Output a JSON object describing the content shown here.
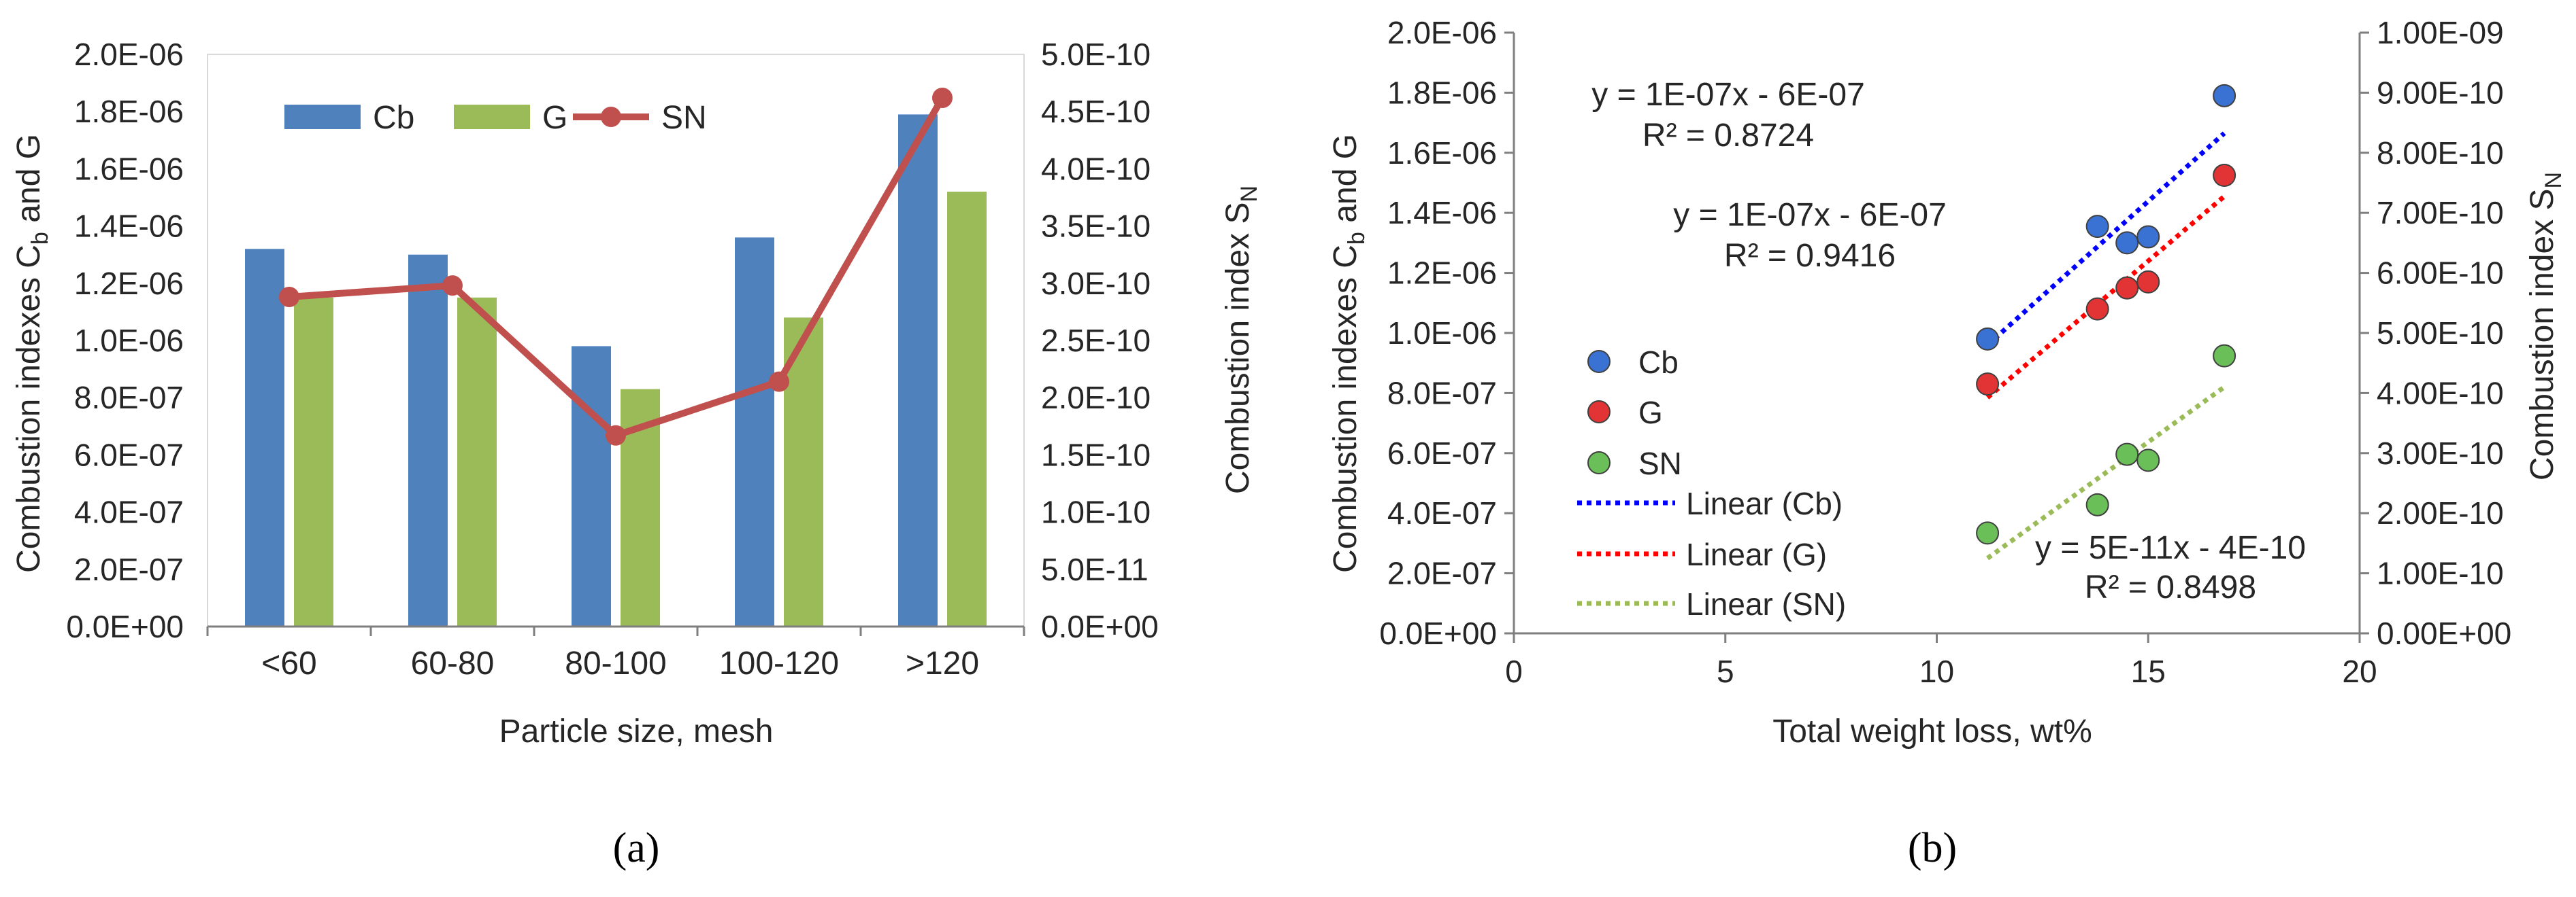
{
  "colors": {
    "cb": "#4f81bd",
    "g": "#9bbb59",
    "sn": "#c0504d",
    "cb_point": "#3a72d4",
    "g_point": "#e23434",
    "sn_point": "#6bbf59",
    "cb_trend": "#0000ff",
    "g_trend": "#ff0000",
    "sn_trend": "#9bbb59",
    "cb_eq": "#0000ff",
    "g_eq": "#ff0000",
    "sn_eq": "#00b050",
    "axis": "#7f7f7f"
  },
  "chart_data": [
    {
      "id": "a",
      "type": "bar",
      "panel_label": "(a)",
      "categories": [
        "<60",
        "60-80",
        "80-100",
        "100-120",
        ">120"
      ],
      "xlabel": "Particle size, mesh",
      "ylabel_main": "Combustion indexes C",
      "ylabel_sub": "b",
      "ylabel_tail": " and G",
      "y2label_main": "Combustion index S",
      "y2label_sub": "N",
      "ylim": [
        0,
        2e-06
      ],
      "yticks": [
        "0.0E+00",
        "2.0E-07",
        "4.0E-07",
        "6.0E-07",
        "8.0E-07",
        "1.0E-06",
        "1.2E-06",
        "1.4E-06",
        "1.6E-06",
        "1.8E-06",
        "2.0E-06"
      ],
      "y2lim": [
        0,
        5e-10
      ],
      "y2ticks": [
        "0.0E+00",
        "5.0E-11",
        "1.0E-10",
        "1.5E-10",
        "2.0E-10",
        "2.5E-10",
        "3.0E-10",
        "3.5E-10",
        "4.0E-10",
        "4.5E-10",
        "5.0E-10"
      ],
      "legend": [
        "Cb",
        "G",
        "SN"
      ],
      "legend_position": "top-left",
      "series": [
        {
          "name": "Cb",
          "kind": "bar",
          "axis": "left",
          "values": [
            1.32e-06,
            1.3e-06,
            9.8e-07,
            1.36e-06,
            1.79e-06
          ]
        },
        {
          "name": "G",
          "kind": "bar",
          "axis": "left",
          "values": [
            1.15e-06,
            1.15e-06,
            8.3e-07,
            1.08e-06,
            1.52e-06
          ]
        },
        {
          "name": "SN",
          "kind": "line",
          "axis": "right",
          "values": [
            2.88e-10,
            2.98e-10,
            1.67e-10,
            2.14e-10,
            4.62e-10
          ]
        }
      ]
    },
    {
      "id": "b",
      "type": "scatter",
      "panel_label": "(b)",
      "xlabel": "Total weight loss, wt%",
      "xlim": [
        0,
        20
      ],
      "xticks": [
        "0",
        "5",
        "10",
        "15",
        "20"
      ],
      "ylabel_main": "Combustion indexes C",
      "ylabel_sub": "b",
      "ylabel_tail": " and G",
      "y2label_main": "Combustion index S",
      "y2label_sub": "N",
      "ylim": [
        0,
        2e-06
      ],
      "yticks": [
        "0.0E+00",
        "2.0E-07",
        "4.0E-07",
        "6.0E-07",
        "8.0E-07",
        "1.0E-06",
        "1.2E-06",
        "1.4E-06",
        "1.6E-06",
        "1.8E-06",
        "2.0E-06"
      ],
      "y2lim": [
        0,
        1e-09
      ],
      "y2ticks": [
        "0.00E+00",
        "1.00E-10",
        "2.00E-10",
        "3.00E-10",
        "4.00E-10",
        "5.00E-10",
        "6.00E-10",
        "7.00E-10",
        "8.00E-10",
        "9.00E-10",
        "1.00E-09"
      ],
      "legend": [
        "Cb",
        "G",
        "SN",
        "Linear (Cb)",
        "Linear (G)",
        "Linear (SN)"
      ],
      "legend_position": "left",
      "series": [
        {
          "name": "Cb",
          "axis": "left",
          "x": [
            11.2,
            13.8,
            14.5,
            15.0,
            16.8
          ],
          "y": [
            9.8e-07,
            1.355e-06,
            1.3e-06,
            1.32e-06,
            1.79e-06
          ],
          "trend": {
            "x": [
              11.2,
              16.8
            ],
            "y": [
              9.6e-07,
              1.665e-06
            ]
          }
        },
        {
          "name": "G",
          "axis": "left",
          "x": [
            11.2,
            13.8,
            14.5,
            15.0,
            16.8
          ],
          "y": [
            8.3e-07,
            1.08e-06,
            1.15e-06,
            1.17e-06,
            1.525e-06
          ],
          "trend": {
            "x": [
              11.2,
              16.8
            ],
            "y": [
              7.85e-07,
              1.455e-06
            ]
          }
        },
        {
          "name": "SN",
          "axis": "right",
          "x": [
            11.2,
            13.8,
            14.5,
            15.0,
            16.8
          ],
          "y": [
            1.67e-10,
            2.14e-10,
            2.98e-10,
            2.88e-10,
            4.62e-10
          ],
          "trend": {
            "x": [
              11.2,
              16.8
            ],
            "y": [
              1.25e-10,
              4.1e-10
            ]
          }
        }
      ],
      "equations": [
        {
          "series": "Cb",
          "eq": "y = 1E-07x - 6E-07",
          "r2": "R² = 0.8724"
        },
        {
          "series": "G",
          "eq": "y = 1E-07x - 6E-07",
          "r2": "R² = 0.9416"
        },
        {
          "series": "SN",
          "eq": "y = 5E-11x - 4E-10",
          "r2": "R² = 0.8498"
        }
      ]
    }
  ]
}
